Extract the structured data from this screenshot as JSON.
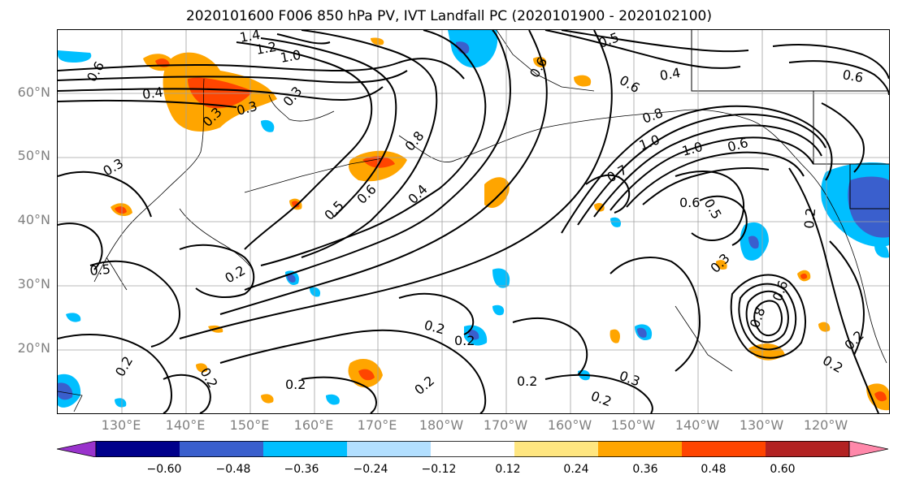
{
  "title": "2020101600 F006 850 hPa PV, IVT Landfall PC (2020101900 - 2020102100)",
  "lat_labels": [
    "60°N",
    "50°N",
    "40°N",
    "30°N",
    "20°N"
  ],
  "lon_labels": [
    "130°E",
    "140°E",
    "150°E",
    "160°E",
    "170°E",
    "180°W",
    "170°W",
    "160°W",
    "150°W",
    "140°W",
    "130°W",
    "120°W"
  ],
  "colorbar": {
    "colors": [
      "#9933cc",
      "#00008b",
      "#3a5fcd",
      "#00bfff",
      "#b2dfff",
      "#ffffff",
      "#ffe680",
      "#ffa500",
      "#ff4500",
      "#b22222",
      "#ff88aa"
    ],
    "tick_labels": [
      "−0.60",
      "−0.48",
      "−0.36",
      "−0.24",
      "−0.12",
      "0.12",
      "0.24",
      "0.36",
      "0.48",
      "0.60"
    ]
  },
  "contour_labels": [
    "1.4",
    "1.2",
    "1.0",
    "0.6",
    "0.4",
    "0.3",
    "0.3",
    "0.3",
    "0.5",
    "0.6",
    "0.8",
    "0.4",
    "0.6",
    "0.5",
    "0.4",
    "0.6",
    "0.8",
    "1.0",
    "1.0",
    "0.6",
    "0.7",
    "0.6",
    "0.5",
    "0.2",
    "0.3",
    "0.5",
    "0.2",
    "0.2",
    "0.2",
    "0.2",
    "0.2",
    "0.2",
    "0.2",
    "0.2",
    "0.3",
    "0.2",
    "0.3",
    "0.6",
    "0.8",
    "0.2",
    "0.2",
    "0.6"
  ]
}
